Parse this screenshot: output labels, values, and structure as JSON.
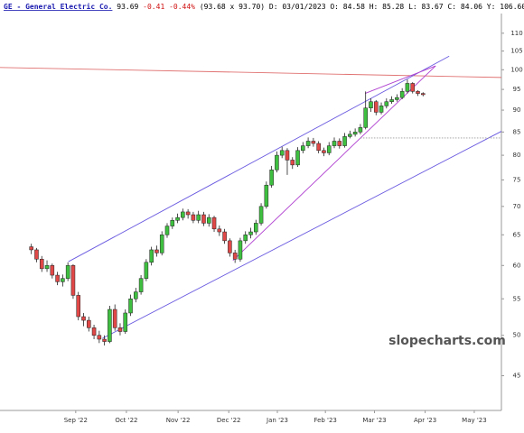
{
  "chart_data": {
    "type": "candlestick",
    "header": [
      "GE - General Electric Co.",
      "93.69",
      "-0.41",
      "-0.44%",
      "(93.68 x 93.70)",
      "D: 03/01/2023",
      "O: 84.58",
      "H: 85.28",
      "L: 83.67",
      "C: 84.06",
      "Y: 106.60"
    ],
    "header_colors": [
      "#1a1ab0",
      "#000000",
      "#d01010",
      "#d01010",
      "#000000",
      "#000000",
      "#000000",
      "#000000",
      "#000000",
      "#000000",
      "#000000"
    ],
    "watermark": "slopecharts.com",
    "log_scale": true,
    "ylim": [
      41.1,
      115.8
    ],
    "yticks": [
      45,
      50,
      55,
      60,
      65,
      70,
      75,
      80,
      85,
      90,
      95,
      100,
      105,
      110
    ],
    "xlim": [
      -6,
      90
    ],
    "xticks": [
      {
        "value": 8.5,
        "label": "Sep '22"
      },
      {
        "value": 18.2,
        "label": "Oct '22"
      },
      {
        "value": 28.1,
        "label": "Nov '22"
      },
      {
        "value": 37.8,
        "label": "Dec '22"
      },
      {
        "value": 47.1,
        "label": "Jan '23"
      },
      {
        "value": 56.3,
        "label": "Feb '23"
      },
      {
        "value": 65.7,
        "label": "Mar '23"
      },
      {
        "value": 75.4,
        "label": "Apr '23"
      },
      {
        "value": 84.8,
        "label": "May '23"
      }
    ],
    "up_color": "#3fbf3f",
    "down_color": "#e04848",
    "open": [
      63,
      62.5,
      61,
      59.5,
      60,
      58.5,
      57.5,
      58,
      60,
      55.5,
      52.5,
      52,
      51,
      50,
      49.5,
      49.2,
      53.5,
      51,
      50.5,
      53,
      55,
      56,
      58,
      60.5,
      62.5,
      62,
      65,
      66.5,
      67.5,
      68,
      69,
      68.5,
      67.5,
      68.5,
      67,
      68,
      66,
      65.5,
      64,
      62,
      61,
      64,
      65,
      65.5,
      67,
      70,
      74,
      77,
      80,
      81,
      79,
      78,
      81,
      82,
      83,
      82.5,
      81,
      80.5,
      82,
      83,
      82,
      84,
      84.5,
      85,
      86,
      90.5,
      92,
      89.5,
      91,
      92,
      92.5,
      93,
      94.5,
      96.5,
      94.5,
      94
    ],
    "high": [
      63.5,
      62.8,
      61.5,
      60.8,
      60.3,
      59,
      58.6,
      60.5,
      60.2,
      56,
      53,
      52.5,
      51.4,
      50.6,
      50,
      54,
      54.2,
      51.6,
      53.5,
      55.6,
      56.6,
      58.5,
      61,
      63,
      63.2,
      65.6,
      67,
      68,
      68.7,
      69.6,
      69.5,
      69,
      69.2,
      69,
      68.6,
      68.3,
      66.6,
      66,
      64.4,
      62.5,
      64.5,
      65.6,
      66.2,
      67.6,
      70.6,
      74.7,
      77.8,
      80.8,
      81.8,
      81.5,
      79.6,
      81.7,
      82.8,
      83.8,
      83.7,
      83,
      81.6,
      82.8,
      83.8,
      83.6,
      84.8,
      85.3,
      85.8,
      86.8,
      94.5,
      92.8,
      92.4,
      91.8,
      92.8,
      93.3,
      93.8,
      95.3,
      97.5,
      96.8,
      94.8,
      94.3
    ],
    "low": [
      61.8,
      60.5,
      59,
      59,
      58,
      57,
      56.8,
      57.6,
      55,
      52,
      51.2,
      50.5,
      49.5,
      49,
      48.7,
      49,
      50.6,
      50,
      50.2,
      52.6,
      54.5,
      55.6,
      57.6,
      60,
      61.4,
      61.6,
      64.5,
      66,
      67,
      67.5,
      67.8,
      67,
      67,
      66.5,
      66.4,
      65.5,
      64.8,
      63.5,
      61.4,
      60.4,
      60.6,
      63.5,
      64.4,
      65,
      66.6,
      69.6,
      73.5,
      76.5,
      79.4,
      76,
      77.2,
      77.6,
      80.4,
      81.5,
      81.8,
      80.4,
      79.8,
      80,
      81.5,
      81.4,
      81.6,
      83.6,
      84,
      84.5,
      85.6,
      89.6,
      88.8,
      89,
      90.4,
      91.5,
      92,
      92.6,
      94,
      94,
      93.4,
      93.3
    ],
    "close": [
      62.5,
      61,
      59.5,
      60,
      58.5,
      57.5,
      58,
      60,
      55.5,
      52.5,
      52,
      51,
      50,
      49.5,
      49.2,
      53.5,
      51,
      50.5,
      53,
      55,
      56,
      58,
      60.5,
      62.5,
      62,
      65,
      66.5,
      67.5,
      68,
      69,
      68.5,
      67.5,
      68.5,
      67,
      68,
      66,
      65.5,
      64,
      62,
      61,
      64,
      65,
      65.5,
      67,
      70,
      74,
      77,
      80,
      81,
      79,
      78,
      81,
      82,
      83,
      82.5,
      81,
      80.5,
      82,
      83,
      82,
      84,
      84.5,
      85,
      86,
      90.5,
      92,
      89.5,
      91,
      92,
      92.5,
      93,
      94.5,
      96.5,
      94.5,
      94,
      93.7
    ],
    "trendlines": [
      {
        "color": "#e07070",
        "style": "solid",
        "points": [
          [
            -6,
            100.6
          ],
          [
            94,
            97.9
          ]
        ]
      },
      {
        "color": "#6a5ae0",
        "style": "solid",
        "points": [
          [
            7.1,
            60.6
          ],
          [
            80,
            103.6
          ]
        ]
      },
      {
        "color": "#6a5ae0",
        "style": "solid",
        "points": [
          [
            13.6,
            49.6
          ],
          [
            94,
            87.6
          ]
        ]
      },
      {
        "color": "#b040d0",
        "style": "solid",
        "points": [
          [
            38.6,
            60.8
          ],
          [
            77.4,
            101
          ]
        ]
      },
      {
        "color": "#b040d0",
        "style": "solid",
        "points": [
          [
            63.9,
            94
          ],
          [
            77.4,
            101
          ]
        ]
      },
      {
        "color": "#999999",
        "style": "dotted",
        "points": [
          [
            63,
            83.7
          ],
          [
            94,
            83.7
          ]
        ]
      }
    ]
  }
}
